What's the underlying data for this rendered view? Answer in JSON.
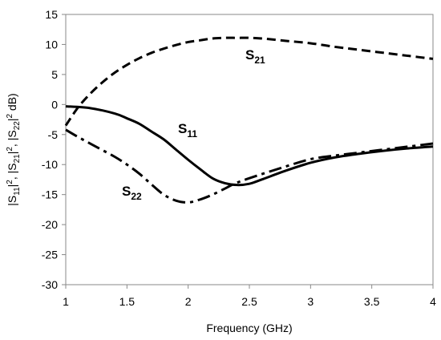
{
  "chart_data": {
    "type": "line",
    "title": "",
    "xlabel": "Frequency (GHz)",
    "ylabel": {
      "parts": [
        {
          "text": "|S",
          "sub": false
        },
        {
          "text": "11",
          "sub": true
        },
        {
          "text": "|",
          "sub": false
        },
        {
          "text": "2",
          "sup": true
        },
        {
          "text": ", |S",
          "sub": false
        },
        {
          "text": "21",
          "sub": true
        },
        {
          "text": "|",
          "sub": false
        },
        {
          "text": "2",
          "sup": true
        },
        {
          "text": ", |S",
          "sub": false
        },
        {
          "text": "22",
          "sub": true
        },
        {
          "text": "|",
          "sub": false
        },
        {
          "text": "2",
          "sup": true
        },
        {
          "text": " dB)",
          "sub": false
        }
      ]
    },
    "xlim": [
      1,
      4
    ],
    "ylim": [
      -30,
      15
    ],
    "x_ticks": [
      1,
      1.5,
      2,
      2.5,
      3,
      3.5,
      4
    ],
    "x_tick_labels": [
      "1",
      "1.5",
      "2",
      "2.5",
      "3",
      "3.5",
      "4"
    ],
    "y_ticks": [
      15,
      10,
      5,
      0,
      -5,
      -10,
      -15,
      -20,
      -25,
      -30
    ],
    "y_tick_labels": [
      "15",
      "10",
      "5",
      "0",
      "-5",
      "-10",
      "-15",
      "-20",
      "-25",
      "-30"
    ],
    "grid": false,
    "legend": "inline labels",
    "series": [
      {
        "name": "S21",
        "label_main": "S",
        "label_sub": "21",
        "style": "dashed",
        "color": "#000000",
        "x": [
          1.0,
          1.1,
          1.2,
          1.3,
          1.4,
          1.5,
          1.6,
          1.7,
          1.8,
          1.9,
          2.0,
          2.1,
          2.2,
          2.3,
          2.4,
          2.5,
          2.6,
          2.8,
          3.0,
          3.2,
          3.4,
          3.6,
          3.8,
          4.0
        ],
        "y": [
          -3.5,
          -0.5,
          1.8,
          3.7,
          5.3,
          6.6,
          7.7,
          8.6,
          9.3,
          9.9,
          10.4,
          10.7,
          11.0,
          11.1,
          11.1,
          11.1,
          11.0,
          10.6,
          10.2,
          9.6,
          9.1,
          8.6,
          8.1,
          7.6
        ]
      },
      {
        "name": "S11",
        "label_main": "S",
        "label_sub": "11",
        "style": "solid",
        "color": "#000000",
        "x": [
          1.0,
          1.2,
          1.4,
          1.5,
          1.6,
          1.7,
          1.8,
          1.9,
          2.0,
          2.1,
          2.2,
          2.3,
          2.4,
          2.5,
          2.6,
          2.8,
          3.0,
          3.2,
          3.4,
          3.6,
          3.8,
          4.0
        ],
        "y": [
          -0.3,
          -0.6,
          -1.5,
          -2.3,
          -3.2,
          -4.5,
          -5.8,
          -7.5,
          -9.2,
          -10.8,
          -12.3,
          -13.1,
          -13.4,
          -13.2,
          -12.5,
          -11.0,
          -9.7,
          -8.8,
          -8.2,
          -7.7,
          -7.3,
          -7.0
        ]
      },
      {
        "name": "S22",
        "label_main": "S",
        "label_sub": "22",
        "style": "dash-dot",
        "color": "#000000",
        "x": [
          1.0,
          1.1,
          1.2,
          1.3,
          1.4,
          1.5,
          1.6,
          1.7,
          1.8,
          1.9,
          2.0,
          2.1,
          2.2,
          2.3,
          2.4,
          2.6,
          2.8,
          3.0,
          3.2,
          3.4,
          3.6,
          3.8,
          4.0
        ],
        "y": [
          -4.2,
          -5.4,
          -6.5,
          -7.6,
          -8.7,
          -10.0,
          -11.5,
          -13.3,
          -15.0,
          -16.0,
          -16.3,
          -15.8,
          -15.0,
          -14.0,
          -13.0,
          -11.6,
          -10.3,
          -9.1,
          -8.5,
          -8.0,
          -7.5,
          -7.0,
          -6.5
        ]
      }
    ]
  }
}
